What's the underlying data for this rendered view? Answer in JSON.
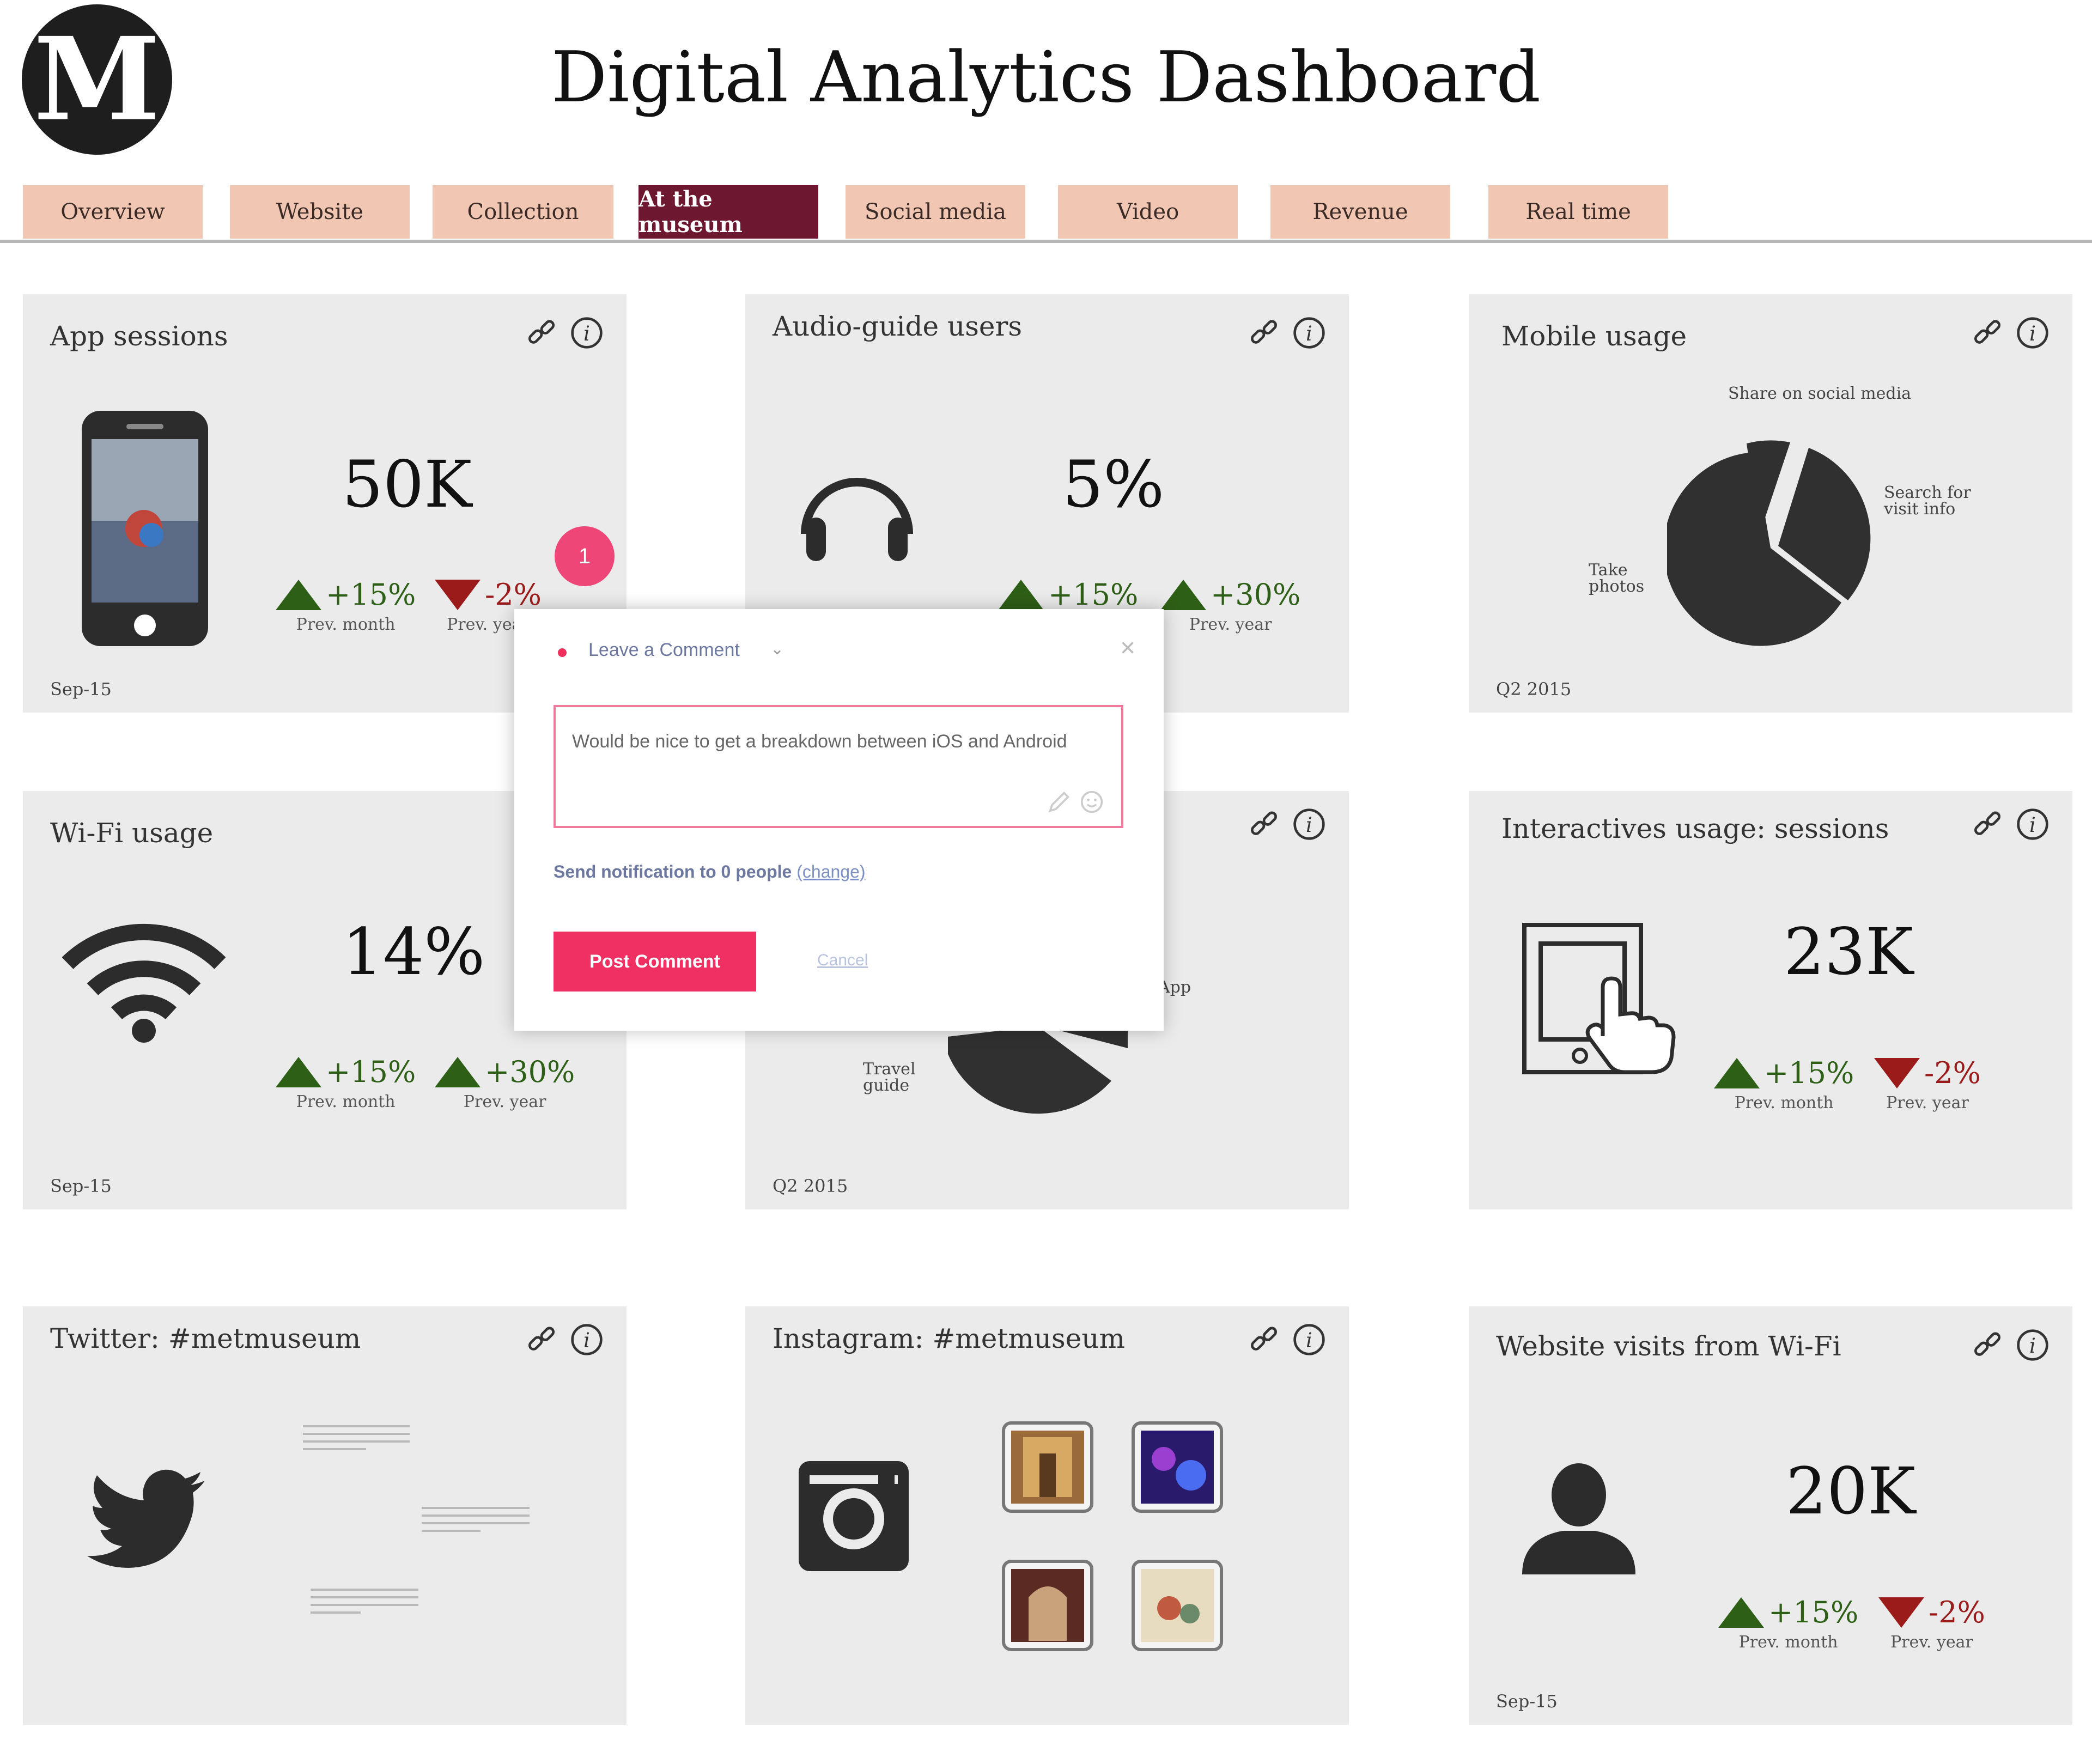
{
  "header": {
    "logo_letter": "M",
    "title": "Digital Analytics Dashboard"
  },
  "tabs": [
    {
      "label": "Overview",
      "active": false
    },
    {
      "label": "Website",
      "active": false
    },
    {
      "label": "Collection",
      "active": false
    },
    {
      "label": "At the museum",
      "active": true
    },
    {
      "label": "Social media",
      "active": false
    },
    {
      "label": "Video",
      "active": false
    },
    {
      "label": "Revenue",
      "active": false
    },
    {
      "label": "Real time",
      "active": false
    }
  ],
  "colors": {
    "tab": "#f1c6b3",
    "tab_active": "#6d1730",
    "card": "#ebebeb",
    "up": "#2e5f16",
    "down": "#9b1b1b",
    "accent": "#f03063"
  },
  "cards": {
    "app_sessions": {
      "title": "App sessions",
      "value": "50K",
      "d1": "+15%",
      "d1_label": "Prev. month",
      "d2": "-2%",
      "d2_label": "Prev. year",
      "date": "Sep-15",
      "icon": "smartphone-icon"
    },
    "audio_guide": {
      "title": "Audio-guide users",
      "value": "5%",
      "d1": "+15%",
      "d2": "+30%",
      "d2_label": "Prev. year",
      "icon": "headphones-icon"
    },
    "mobile_usage": {
      "title": "Mobile usage",
      "date": "Q2 2015",
      "labels": [
        "Share on social media",
        "Search for visit info",
        "Take photos"
      ],
      "icon": "pie-chart-icon"
    },
    "wifi": {
      "title": "Wi-Fi usage",
      "value": "14%",
      "d1": "+15%",
      "d1_label": "Prev. month",
      "d2": "+30%",
      "d2_label": "Prev. year",
      "date": "Sep-15",
      "icon": "wifi-icon"
    },
    "middle": {
      "date": "Q2 2015",
      "labels": [
        "App",
        "Travel guide"
      ],
      "icon": "pie-chart-icon"
    },
    "interactives": {
      "title": "Interactives usage: sessions",
      "value": "23K",
      "d1": "+15%",
      "d1_label": "Prev. month",
      "d2": "-2%",
      "d2_label": "Prev. year",
      "icon": "touchscreen-icon"
    },
    "twitter": {
      "title": "Twitter: #metmuseum",
      "icon": "twitter-bird-icon"
    },
    "instagram": {
      "title": "Instagram: #metmuseum",
      "icon": "instagram-icon"
    },
    "website_wifi": {
      "title": "Website visits from Wi-Fi",
      "value": "20K",
      "d1": "+15%",
      "d1_label": "Prev. month",
      "d2": "-2%",
      "d2_label": "Prev. year",
      "date": "Sep-15",
      "icon": "user-icon"
    }
  },
  "comment": {
    "badge": "1",
    "header": "Leave a Comment",
    "text": "Would be nice to get a breakdown between iOS and Android",
    "notify": "Send notification to 0 people",
    "notify_change": "(change)",
    "post_label": "Post Comment",
    "cancel_label": "Cancel"
  }
}
